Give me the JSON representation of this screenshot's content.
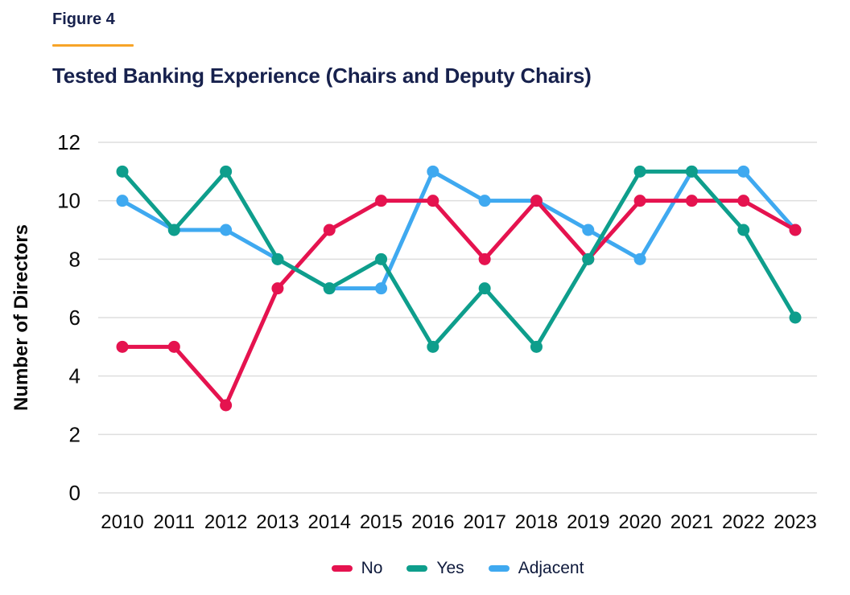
{
  "figure_label": "Figure 4",
  "title": "Tested Banking Experience (Chairs and Deputy Chairs)",
  "colors": {
    "accent_rule": "#F7A428",
    "heading_text": "#17214D",
    "grid_line": "#DEDEDE",
    "tick_text": "#0A0A0A",
    "legend_text": "#0F1A3C"
  },
  "chart_data": {
    "type": "line",
    "x": [
      2010,
      2011,
      2012,
      2013,
      2014,
      2015,
      2016,
      2017,
      2018,
      2019,
      2020,
      2021,
      2022,
      2023
    ],
    "series": [
      {
        "name": "No",
        "color": "#E5134F",
        "values": [
          5,
          5,
          3,
          7,
          9,
          10,
          10,
          8,
          10,
          8,
          10,
          10,
          10,
          9
        ]
      },
      {
        "name": "Yes",
        "color": "#0E9E8C",
        "values": [
          11,
          9,
          11,
          8,
          7,
          8,
          5,
          7,
          5,
          8,
          11,
          11,
          9,
          6
        ]
      },
      {
        "name": "Adjacent",
        "color": "#3FA9F0",
        "values": [
          10,
          9,
          9,
          8,
          7,
          7,
          11,
          10,
          10,
          9,
          8,
          11,
          11,
          9
        ]
      }
    ],
    "xlabel": "",
    "ylabel": "Number of Directors",
    "ylim": [
      0,
      12
    ],
    "yticks": [
      0,
      2,
      4,
      6,
      8,
      10,
      12
    ],
    "grid": true,
    "legend_position": "bottom",
    "marker": "circle",
    "line_width": 5,
    "marker_radius": 7.5
  }
}
